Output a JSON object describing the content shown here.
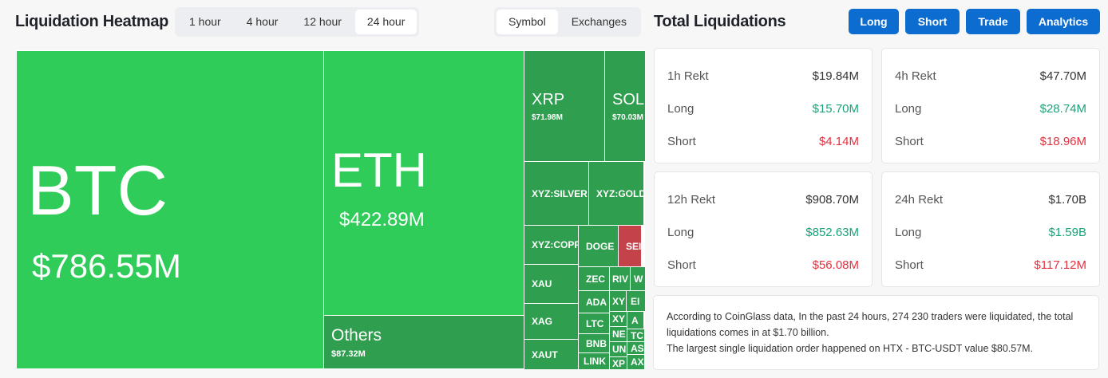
{
  "heatmap": {
    "title": "Liquidation Heatmap",
    "timeframes": [
      "1 hour",
      "4 hour",
      "12 hour",
      "24 hour"
    ],
    "active_timeframe": "24 hour",
    "views": [
      "Symbol",
      "Exchanges"
    ],
    "active_view": "Symbol",
    "cells": {
      "btc": {
        "name": "BTC",
        "value": "$786.55M"
      },
      "eth": {
        "name": "ETH",
        "value": "$422.89M"
      },
      "others": {
        "name": "Others",
        "value": "$87.32M"
      },
      "xrp": {
        "name": "XRP",
        "value": "$71.98M"
      },
      "sol": {
        "name": "SOL",
        "value": "$70.03M"
      },
      "small": [
        "XYZ:SILVER",
        "XYZ:GOLD",
        "XYZ:COPPER",
        "DOGE",
        "SEI",
        "XAU",
        "XAG",
        "XAUT",
        "ZEC",
        "RIV",
        "W",
        "ADA",
        "XY",
        "EI",
        "LTC",
        "XY",
        "A",
        "BNB",
        "NE",
        "TC",
        "UN",
        "AS",
        "LINK",
        "XP",
        "AX"
      ]
    },
    "colors": {
      "large": "#30cc5a",
      "positive": "#2f9e4f",
      "negative": "#c4434b"
    }
  },
  "totals": {
    "title": "Total Liquidations",
    "buttons": [
      "Long",
      "Short",
      "Trade",
      "Analytics"
    ],
    "cards": [
      {
        "label": "1h Rekt",
        "total": "$19.84M",
        "long": "$15.70M",
        "short": "$4.14M"
      },
      {
        "label": "4h Rekt",
        "total": "$47.70M",
        "long": "$28.74M",
        "short": "$18.96M"
      },
      {
        "label": "12h Rekt",
        "total": "$908.70M",
        "long": "$852.63M",
        "short": "$56.08M"
      },
      {
        "label": "24h Rekt",
        "total": "$1.70B",
        "long": "$1.59B",
        "short": "$117.12M"
      }
    ],
    "long_label": "Long",
    "short_label": "Short",
    "summary_line1": "According to CoinGlass data, In the past 24 hours, 274 230 traders were liquidated, the total liquidations comes in at $1.70 billion.",
    "summary_line2": "The largest single liquidation order happened on HTX - BTC-USDT value $80.57M."
  }
}
